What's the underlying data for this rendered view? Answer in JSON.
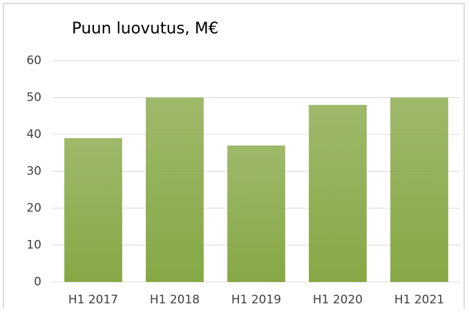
{
  "chart_data": {
    "type": "bar",
    "title": "Puun luovutus, M€",
    "categories": [
      "H1 2017",
      "H1 2018",
      "H1 2019",
      "H1 2020",
      "H1 2021"
    ],
    "values": [
      39,
      50,
      37,
      48,
      50
    ],
    "color": "#86a845",
    "ylim": [
      0,
      60
    ],
    "yticks": [
      0,
      10,
      20,
      30,
      40,
      50,
      60
    ],
    "grid": true
  }
}
